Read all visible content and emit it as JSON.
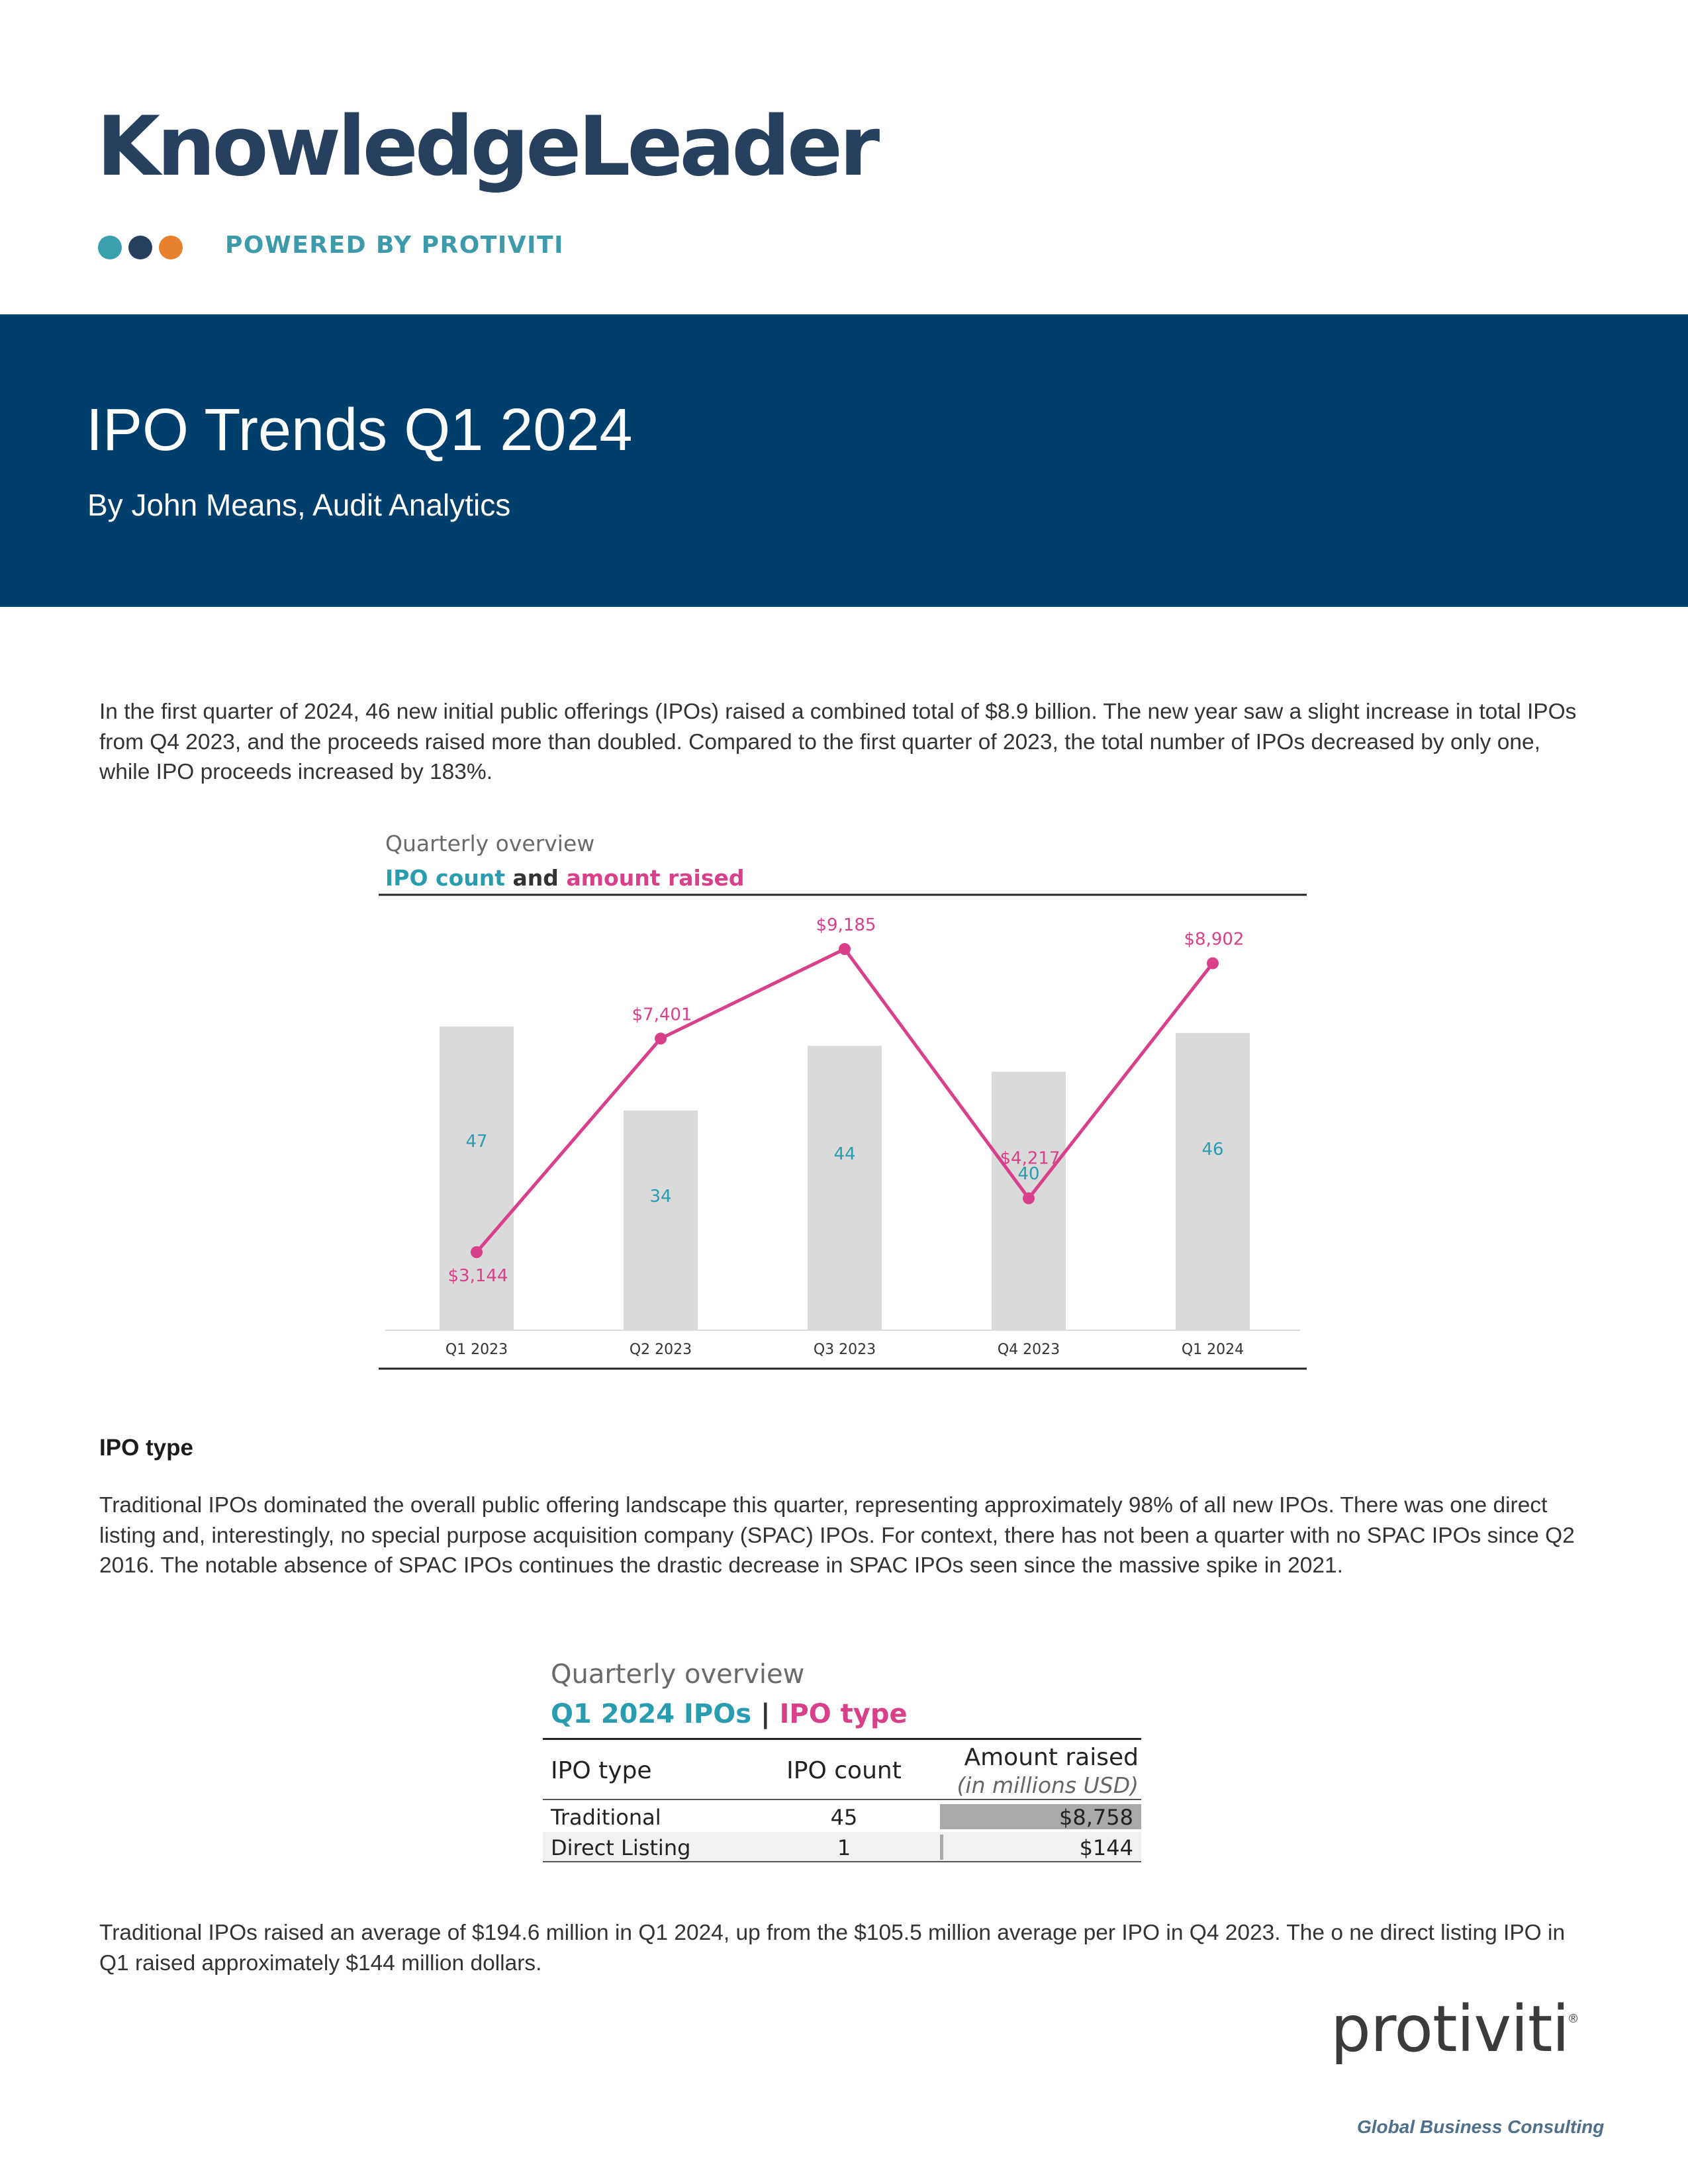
{
  "brand": {
    "name": "KnowledgeLeader",
    "tagline": "POWERED BY PROTIVITI",
    "colors": {
      "navy": "#27405f",
      "teal": "#3aa0ad",
      "orange": "#e8812d",
      "tagline": "#3c9aaa"
    }
  },
  "banner": {
    "title": "IPO Trends Q1 2024",
    "byline": "By John Means, Audit Analytics",
    "background": "#003f6b"
  },
  "intro": "In the first quarter of 2024, 46 new initial public offerings (IPOs) raised a combined total of $8.9 billion. The new year saw a slight increase in total IPOs from Q4 2023, and the proceeds raised more than doubled. Compared to the first quarter of 2023, the total number of IPOs decreased by only one, while IPO proceeds increased by 183%.",
  "chart_data": {
    "type": "bar",
    "title": "Quarterly overview",
    "subtitle_parts": {
      "count": "IPO count",
      "and": "and",
      "amount": "amount raised"
    },
    "categories": [
      "Q1 2023",
      "Q2 2023",
      "Q3 2023",
      "Q4 2023",
      "Q1 2024"
    ],
    "series": [
      {
        "name": "IPO count",
        "type": "bar",
        "values": [
          47,
          34,
          44,
          40,
          46
        ],
        "labels": [
          "47",
          "34",
          "44",
          "40",
          "46"
        ],
        "color": "#dadada",
        "label_color": "#2a9cb0"
      },
      {
        "name": "amount raised",
        "type": "line",
        "values": [
          3144,
          7401,
          9185,
          4217,
          8902
        ],
        "labels": [
          "$3,144",
          "$7,401",
          "$9,185",
          "$4,217",
          "$8,902"
        ],
        "color": "#d8408a"
      }
    ],
    "colors": {
      "count": "#2a9cb0",
      "amount": "#d8408a"
    }
  },
  "ipo_type": {
    "heading": "IPO type",
    "paragraph": "Traditional IPOs dominated the overall public offering landscape this quarter, representing approximately 98% of all new IPOs.  There was one direct listing and, interestingly, no special purpose acquisition company (SPAC) IPOs. For context, there has not been a quarter with no SPAC IPOs since Q2 2016. The notable absence of SPAC IPOs continues the drastic decrease in SPAC IPOs seen since the massive spike in 2021.",
    "table": {
      "title": "Quarterly overview",
      "subtitle_a": "Q1 2024 IPOs",
      "subtitle_sep": "|",
      "subtitle_b": "IPO type",
      "headers": {
        "type": "IPO type",
        "count": "IPO count",
        "amount": "Amount raised",
        "amount_units": "(in millions USD)"
      },
      "rows": [
        {
          "type": "Traditional",
          "count": "45",
          "amount": "$8,758",
          "amount_value": 8758
        },
        {
          "type": "Direct Listing",
          "count": "1",
          "amount": "$144",
          "amount_value": 144
        }
      ]
    },
    "closing": "Traditional IPOs raised an average of $194.6 million in Q1 2024, up from the $105.5 million average per IPO in Q4 2023. The o ne direct listing IPO in Q1 raised approximately $144 million dollars."
  },
  "footer": {
    "logo": "protiviti",
    "registered": "®",
    "tagline": "Global Business Consulting"
  }
}
